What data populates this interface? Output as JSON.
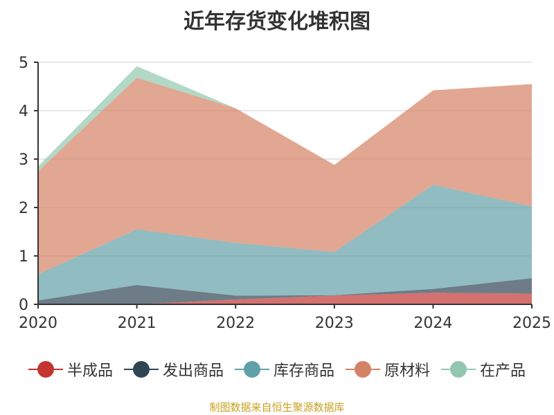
{
  "chart_data": {
    "type": "area",
    "stacked": true,
    "title": "近年存货变化堆积图",
    "x": [
      "2020",
      "2021",
      "2022",
      "2023",
      "2024",
      "2025"
    ],
    "ylim": [
      0,
      5
    ],
    "yticks": [
      "0",
      "1",
      "2",
      "3",
      "4",
      "5"
    ],
    "grid": true,
    "legend_position": "bottom",
    "series": [
      {
        "name": "半成品",
        "color": "#c23531",
        "values": [
          0,
          0,
          0.1,
          0.18,
          0.24,
          0.22
        ]
      },
      {
        "name": "发出商品",
        "color": "#2f4554",
        "values": [
          0.08,
          0.4,
          0.08,
          0.01,
          0.08,
          0.32
        ]
      },
      {
        "name": "库存商品",
        "color": "#61a0a8",
        "values": [
          0.54,
          1.15,
          1.09,
          0.89,
          2.15,
          1.48
        ]
      },
      {
        "name": "原材料",
        "color": "#d48265",
        "values": [
          2.13,
          3.13,
          2.78,
          1.8,
          1.95,
          2.53
        ]
      },
      {
        "name": "在产品",
        "color": "#91c7ae",
        "values": [
          0.1,
          0.24,
          0,
          0,
          0,
          0
        ]
      }
    ]
  },
  "source": "制图数据来自恒生聚源数据库"
}
